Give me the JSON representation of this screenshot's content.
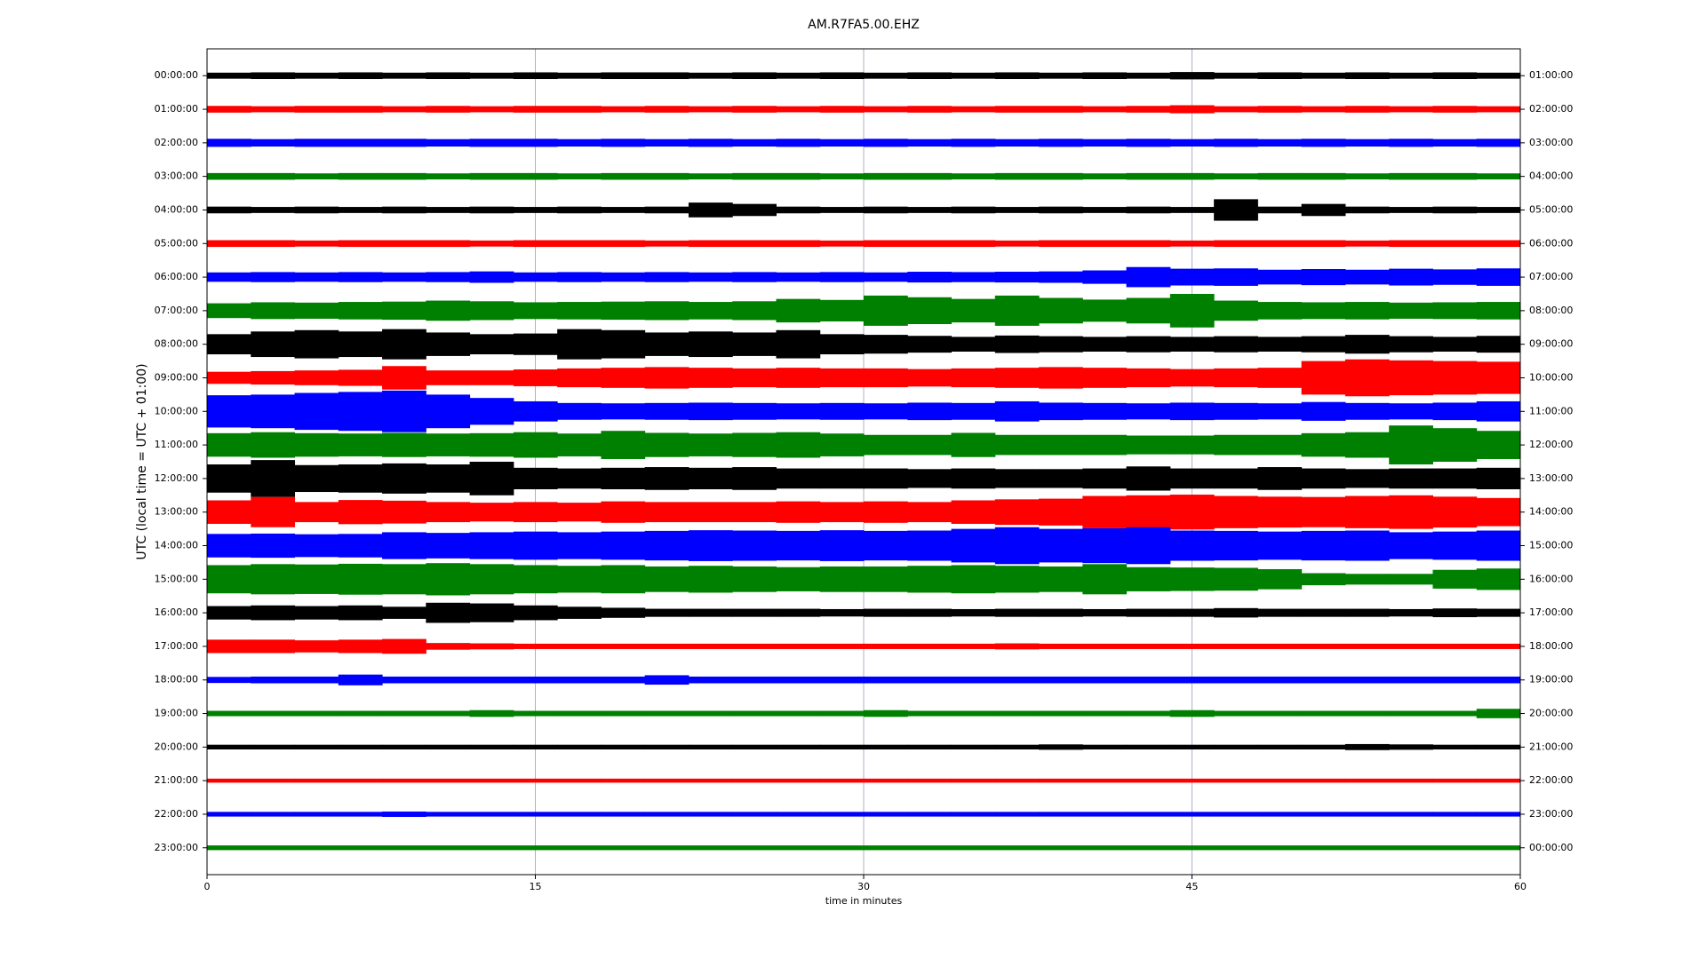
{
  "chart_data": {
    "type": "helicorder",
    "title": "AM.R7FA5.00.EHZ",
    "xlabel": "time in minutes",
    "ylabel": "UTC (local time = UTC + 01:00)",
    "xlim": [
      0,
      60
    ],
    "xticks": [
      0,
      15,
      30,
      45,
      60
    ],
    "grid": true,
    "x": [
      1,
      3,
      5,
      7,
      9,
      11,
      13,
      15,
      17,
      19,
      21,
      23,
      25,
      27,
      29,
      31,
      33,
      35,
      37,
      39,
      41,
      43,
      45,
      47,
      49,
      51,
      53,
      55,
      57,
      59
    ],
    "rows": [
      {
        "label": "00:00:00",
        "right_label": "01:00:00",
        "color": "#000000",
        "values": [
          0.09,
          0.1,
          0.09,
          0.1,
          0.09,
          0.1,
          0.09,
          0.1,
          0.09,
          0.1,
          0.1,
          0.09,
          0.1,
          0.09,
          0.1,
          0.09,
          0.1,
          0.09,
          0.1,
          0.09,
          0.1,
          0.09,
          0.11,
          0.09,
          0.1,
          0.09,
          0.1,
          0.09,
          0.1,
          0.09
        ]
      },
      {
        "label": "01:00:00",
        "right_label": "02:00:00",
        "color": "#ff0000",
        "values": [
          0.1,
          0.09,
          0.1,
          0.1,
          0.09,
          0.1,
          0.09,
          0.1,
          0.1,
          0.09,
          0.1,
          0.09,
          0.1,
          0.09,
          0.1,
          0.09,
          0.1,
          0.09,
          0.1,
          0.1,
          0.09,
          0.1,
          0.12,
          0.09,
          0.1,
          0.09,
          0.1,
          0.09,
          0.1,
          0.09
        ]
      },
      {
        "label": "02:00:00",
        "right_label": "03:00:00",
        "color": "#0000ff",
        "values": [
          0.12,
          0.11,
          0.12,
          0.12,
          0.12,
          0.11,
          0.12,
          0.12,
          0.11,
          0.12,
          0.11,
          0.12,
          0.11,
          0.12,
          0.11,
          0.12,
          0.11,
          0.12,
          0.11,
          0.12,
          0.11,
          0.12,
          0.11,
          0.12,
          0.11,
          0.12,
          0.11,
          0.12,
          0.11,
          0.12
        ]
      },
      {
        "label": "03:00:00",
        "right_label": "04:00:00",
        "color": "#008000",
        "values": [
          0.1,
          0.1,
          0.09,
          0.1,
          0.1,
          0.09,
          0.1,
          0.1,
          0.09,
          0.1,
          0.1,
          0.09,
          0.1,
          0.1,
          0.09,
          0.1,
          0.1,
          0.09,
          0.1,
          0.1,
          0.09,
          0.1,
          0.1,
          0.09,
          0.1,
          0.1,
          0.09,
          0.1,
          0.1,
          0.09
        ]
      },
      {
        "label": "04:00:00",
        "right_label": "05:00:00",
        "color": "#000000",
        "values": [
          0.1,
          0.09,
          0.1,
          0.09,
          0.1,
          0.09,
          0.1,
          0.09,
          0.1,
          0.09,
          0.1,
          0.22,
          0.18,
          0.1,
          0.09,
          0.1,
          0.09,
          0.1,
          0.09,
          0.1,
          0.09,
          0.1,
          0.09,
          0.32,
          0.1,
          0.18,
          0.1,
          0.09,
          0.1,
          0.09
        ]
      },
      {
        "label": "05:00:00",
        "right_label": "06:00:00",
        "color": "#ff0000",
        "values": [
          0.1,
          0.1,
          0.09,
          0.1,
          0.1,
          0.1,
          0.09,
          0.1,
          0.1,
          0.1,
          0.09,
          0.1,
          0.1,
          0.1,
          0.09,
          0.1,
          0.1,
          0.1,
          0.09,
          0.1,
          0.1,
          0.1,
          0.09,
          0.1,
          0.1,
          0.1,
          0.09,
          0.1,
          0.1,
          0.1
        ]
      },
      {
        "label": "06:00:00",
        "right_label": "07:00:00",
        "color": "#0000ff",
        "values": [
          0.14,
          0.15,
          0.14,
          0.15,
          0.14,
          0.15,
          0.17,
          0.14,
          0.15,
          0.14,
          0.15,
          0.14,
          0.15,
          0.14,
          0.15,
          0.14,
          0.16,
          0.15,
          0.16,
          0.17,
          0.2,
          0.3,
          0.25,
          0.26,
          0.22,
          0.24,
          0.22,
          0.25,
          0.23,
          0.26
        ]
      },
      {
        "label": "07:00:00",
        "right_label": "08:00:00",
        "color": "#008000",
        "values": [
          0.22,
          0.25,
          0.24,
          0.26,
          0.27,
          0.3,
          0.28,
          0.25,
          0.26,
          0.27,
          0.28,
          0.26,
          0.28,
          0.35,
          0.32,
          0.45,
          0.4,
          0.35,
          0.45,
          0.38,
          0.33,
          0.38,
          0.5,
          0.3,
          0.26,
          0.25,
          0.26,
          0.24,
          0.25,
          0.26
        ]
      },
      {
        "label": "08:00:00",
        "right_label": "09:00:00",
        "color": "#000000",
        "values": [
          0.3,
          0.38,
          0.42,
          0.38,
          0.45,
          0.35,
          0.3,
          0.32,
          0.45,
          0.42,
          0.35,
          0.38,
          0.35,
          0.42,
          0.3,
          0.28,
          0.25,
          0.22,
          0.26,
          0.24,
          0.22,
          0.24,
          0.22,
          0.24,
          0.22,
          0.24,
          0.28,
          0.24,
          0.22,
          0.25
        ]
      },
      {
        "label": "09:00:00",
        "right_label": "10:00:00",
        "color": "#ff0000",
        "values": [
          0.18,
          0.2,
          0.22,
          0.24,
          0.35,
          0.22,
          0.22,
          0.25,
          0.28,
          0.3,
          0.32,
          0.3,
          0.28,
          0.3,
          0.28,
          0.28,
          0.26,
          0.28,
          0.3,
          0.32,
          0.3,
          0.28,
          0.26,
          0.28,
          0.3,
          0.5,
          0.55,
          0.52,
          0.5,
          0.48
        ]
      },
      {
        "label": "10:00:00",
        "right_label": "11:00:00",
        "color": "#0000ff",
        "values": [
          0.48,
          0.5,
          0.55,
          0.58,
          0.62,
          0.5,
          0.4,
          0.3,
          0.25,
          0.24,
          0.25,
          0.26,
          0.25,
          0.24,
          0.25,
          0.24,
          0.26,
          0.25,
          0.3,
          0.26,
          0.25,
          0.24,
          0.26,
          0.25,
          0.24,
          0.28,
          0.25,
          0.24,
          0.26,
          0.3
        ]
      },
      {
        "label": "11:00:00",
        "right_label": "12:00:00",
        "color": "#008000",
        "values": [
          0.35,
          0.38,
          0.35,
          0.34,
          0.36,
          0.34,
          0.35,
          0.38,
          0.34,
          0.42,
          0.36,
          0.34,
          0.36,
          0.38,
          0.34,
          0.3,
          0.3,
          0.36,
          0.3,
          0.3,
          0.3,
          0.28,
          0.28,
          0.3,
          0.3,
          0.35,
          0.38,
          0.58,
          0.5,
          0.42
        ]
      },
      {
        "label": "12:00:00",
        "right_label": "13:00:00",
        "color": "#000000",
        "values": [
          0.42,
          0.55,
          0.4,
          0.42,
          0.45,
          0.42,
          0.5,
          0.32,
          0.3,
          0.32,
          0.34,
          0.32,
          0.34,
          0.3,
          0.3,
          0.3,
          0.28,
          0.3,
          0.28,
          0.28,
          0.3,
          0.36,
          0.3,
          0.3,
          0.34,
          0.3,
          0.28,
          0.3,
          0.3,
          0.32
        ]
      },
      {
        "label": "13:00:00",
        "right_label": "14:00:00",
        "color": "#ff0000",
        "values": [
          0.35,
          0.45,
          0.3,
          0.36,
          0.34,
          0.3,
          0.28,
          0.3,
          0.28,
          0.32,
          0.3,
          0.3,
          0.3,
          0.32,
          0.3,
          0.32,
          0.3,
          0.35,
          0.38,
          0.4,
          0.48,
          0.5,
          0.52,
          0.48,
          0.46,
          0.45,
          0.48,
          0.5,
          0.46,
          0.42
        ]
      },
      {
        "label": "14:00:00",
        "right_label": "15:00:00",
        "color": "#0000ff",
        "values": [
          0.35,
          0.36,
          0.34,
          0.35,
          0.4,
          0.38,
          0.4,
          0.42,
          0.4,
          0.42,
          0.44,
          0.46,
          0.45,
          0.44,
          0.46,
          0.44,
          0.45,
          0.5,
          0.55,
          0.5,
          0.52,
          0.55,
          0.45,
          0.44,
          0.42,
          0.44,
          0.45,
          0.4,
          0.42,
          0.45
        ]
      },
      {
        "label": "15:00:00",
        "right_label": "16:00:00",
        "color": "#008000",
        "values": [
          0.42,
          0.45,
          0.44,
          0.46,
          0.45,
          0.48,
          0.45,
          0.42,
          0.4,
          0.42,
          0.38,
          0.4,
          0.38,
          0.36,
          0.38,
          0.38,
          0.4,
          0.42,
          0.4,
          0.38,
          0.45,
          0.36,
          0.35,
          0.34,
          0.3,
          0.18,
          0.16,
          0.16,
          0.28,
          0.32
        ]
      },
      {
        "label": "16:00:00",
        "right_label": "17:00:00",
        "color": "#000000",
        "values": [
          0.2,
          0.22,
          0.2,
          0.22,
          0.18,
          0.3,
          0.28,
          0.22,
          0.18,
          0.15,
          0.12,
          0.12,
          0.12,
          0.12,
          0.11,
          0.12,
          0.12,
          0.11,
          0.12,
          0.12,
          0.11,
          0.12,
          0.12,
          0.14,
          0.12,
          0.12,
          0.12,
          0.11,
          0.13,
          0.12
        ]
      },
      {
        "label": "17:00:00",
        "right_label": "18:00:00",
        "color": "#ff0000",
        "values": [
          0.2,
          0.2,
          0.18,
          0.2,
          0.22,
          0.1,
          0.09,
          0.08,
          0.08,
          0.08,
          0.08,
          0.08,
          0.08,
          0.08,
          0.08,
          0.08,
          0.08,
          0.08,
          0.09,
          0.08,
          0.08,
          0.08,
          0.08,
          0.08,
          0.08,
          0.08,
          0.08,
          0.08,
          0.08,
          0.08
        ]
      },
      {
        "label": "18:00:00",
        "right_label": "19:00:00",
        "color": "#0000ff",
        "values": [
          0.09,
          0.1,
          0.1,
          0.16,
          0.1,
          0.1,
          0.1,
          0.1,
          0.1,
          0.1,
          0.14,
          0.1,
          0.1,
          0.1,
          0.1,
          0.1,
          0.1,
          0.1,
          0.1,
          0.1,
          0.1,
          0.1,
          0.1,
          0.1,
          0.1,
          0.1,
          0.1,
          0.1,
          0.1,
          0.1
        ]
      },
      {
        "label": "19:00:00",
        "right_label": "20:00:00",
        "color": "#008000",
        "values": [
          0.08,
          0.08,
          0.08,
          0.08,
          0.08,
          0.08,
          0.1,
          0.08,
          0.08,
          0.08,
          0.08,
          0.08,
          0.08,
          0.08,
          0.08,
          0.1,
          0.08,
          0.08,
          0.08,
          0.08,
          0.08,
          0.08,
          0.1,
          0.08,
          0.08,
          0.08,
          0.08,
          0.08,
          0.08,
          0.14
        ]
      },
      {
        "label": "20:00:00",
        "right_label": "21:00:00",
        "color": "#000000",
        "values": [
          0.07,
          0.07,
          0.07,
          0.07,
          0.07,
          0.07,
          0.07,
          0.07,
          0.07,
          0.07,
          0.07,
          0.07,
          0.07,
          0.07,
          0.07,
          0.07,
          0.07,
          0.07,
          0.07,
          0.08,
          0.07,
          0.07,
          0.07,
          0.07,
          0.07,
          0.07,
          0.09,
          0.08,
          0.07,
          0.07
        ]
      },
      {
        "label": "21:00:00",
        "right_label": "22:00:00",
        "color": "#ff0000",
        "values": [
          0.06,
          0.06,
          0.06,
          0.06,
          0.06,
          0.06,
          0.06,
          0.06,
          0.06,
          0.06,
          0.06,
          0.06,
          0.06,
          0.06,
          0.06,
          0.06,
          0.06,
          0.06,
          0.06,
          0.06,
          0.06,
          0.06,
          0.06,
          0.06,
          0.06,
          0.06,
          0.06,
          0.06,
          0.06,
          0.06
        ]
      },
      {
        "label": "22:00:00",
        "right_label": "23:00:00",
        "color": "#0000ff",
        "values": [
          0.07,
          0.07,
          0.07,
          0.07,
          0.08,
          0.07,
          0.07,
          0.07,
          0.07,
          0.07,
          0.07,
          0.07,
          0.07,
          0.07,
          0.07,
          0.07,
          0.07,
          0.07,
          0.07,
          0.07,
          0.07,
          0.07,
          0.07,
          0.07,
          0.07,
          0.07,
          0.07,
          0.07,
          0.07,
          0.07
        ]
      },
      {
        "label": "23:00:00",
        "right_label": "00:00:00",
        "color": "#008000",
        "values": [
          0.07,
          0.07,
          0.07,
          0.07,
          0.07,
          0.07,
          0.07,
          0.07,
          0.07,
          0.07,
          0.07,
          0.07,
          0.07,
          0.07,
          0.07,
          0.07,
          0.07,
          0.07,
          0.07,
          0.07,
          0.07,
          0.07,
          0.07,
          0.07,
          0.07,
          0.07,
          0.07,
          0.07,
          0.07,
          0.07
        ]
      }
    ]
  }
}
